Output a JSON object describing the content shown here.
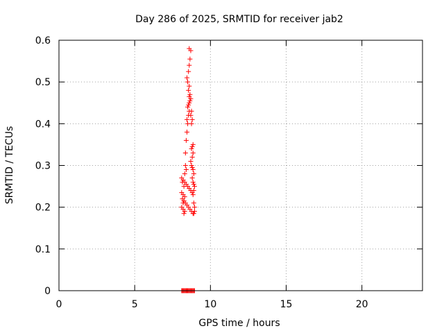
{
  "chart_data": {
    "type": "scatter",
    "title": "Day 286 of 2025, SRMTID for receiver jab2",
    "xlabel": "GPS time / hours",
    "ylabel": "SRMTID / TECUs",
    "xlim": [
      0,
      24
    ],
    "ylim": [
      0,
      0.6
    ],
    "xticks": [
      0,
      5,
      10,
      15,
      20
    ],
    "yticks": [
      0,
      0.1,
      0.2,
      0.3,
      0.4,
      0.5,
      0.6
    ],
    "xtick_labels": [
      "0",
      "5",
      "10",
      "15",
      "20"
    ],
    "ytick_labels": [
      "0",
      "0.1",
      "0.2",
      "0.3",
      "0.4",
      "0.5",
      "0.6"
    ],
    "grid": true,
    "legend": "none",
    "marker": "plus",
    "color": "#ff0000",
    "series": [
      {
        "x": [
          8.1,
          8.15,
          8.2,
          8.25,
          8.1,
          8.2,
          8.3,
          8.15,
          8.25,
          8.2,
          8.1,
          8.2,
          8.3,
          8.25,
          8.35,
          8.4,
          8.3,
          8.35,
          8.4,
          8.45,
          8.5,
          8.45,
          8.55,
          8.6,
          8.5,
          8.55,
          8.6,
          8.65,
          8.7,
          8.6,
          8.65,
          8.55,
          8.6,
          8.5,
          8.45,
          8.55,
          8.6,
          8.65,
          8.7,
          8.6,
          8.75,
          8.7,
          8.8,
          8.75,
          8.85,
          8.8,
          8.75,
          8.85,
          8.8,
          8.7,
          8.75,
          8.8,
          8.85,
          8.9,
          8.8,
          8.85,
          8.9,
          8.95,
          8.9,
          8.85,
          8.9,
          8.95,
          8.95,
          8.9,
          8.1,
          8.15,
          8.2,
          8.25,
          8.3,
          8.35,
          8.4,
          8.45,
          8.5,
          8.55,
          8.6,
          8.65,
          8.7,
          8.75,
          8.8,
          8.85,
          8.9,
          8.95,
          8.2,
          8.3,
          8.4,
          8.5,
          8.6,
          8.7,
          8.8,
          8.25,
          8.35,
          8.45,
          8.55,
          8.65,
          8.75,
          8.85
        ],
        "y": [
          0.27,
          0.26,
          0.265,
          0.25,
          0.235,
          0.23,
          0.225,
          0.22,
          0.215,
          0.21,
          0.2,
          0.195,
          0.19,
          0.185,
          0.3,
          0.29,
          0.28,
          0.33,
          0.36,
          0.38,
          0.4,
          0.41,
          0.42,
          0.43,
          0.44,
          0.445,
          0.45,
          0.455,
          0.46,
          0.465,
          0.47,
          0.48,
          0.49,
          0.5,
          0.51,
          0.525,
          0.54,
          0.555,
          0.575,
          0.58,
          0.43,
          0.42,
          0.41,
          0.4,
          0.35,
          0.345,
          0.34,
          0.33,
          0.32,
          0.31,
          0.3,
          0.295,
          0.29,
          0.28,
          0.27,
          0.26,
          0.255,
          0.25,
          0.24,
          0.23,
          0.21,
          0.2,
          0.19,
          0.185,
          0.0,
          0.0,
          0.0,
          0.0,
          0.0,
          0.0,
          0.0,
          0.0,
          0.0,
          0.0,
          0.0,
          0.0,
          0.0,
          0.0,
          0.0,
          0.0,
          0.0,
          0.0,
          0.265,
          0.26,
          0.255,
          0.25,
          0.245,
          0.24,
          0.235,
          0.215,
          0.21,
          0.205,
          0.2,
          0.195,
          0.19,
          0.185
        ]
      }
    ]
  }
}
